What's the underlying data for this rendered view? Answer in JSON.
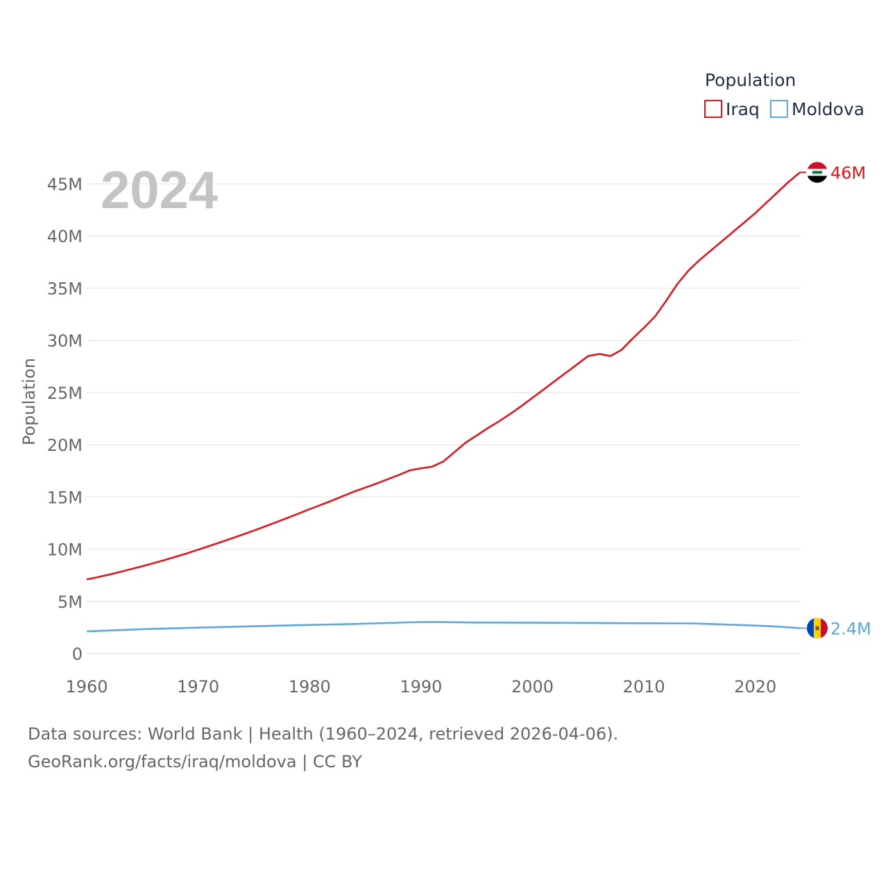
{
  "chart_data": {
    "type": "line",
    "title": "",
    "year_label": "2024",
    "ylabel": "Population",
    "xlabel": "",
    "xlim": [
      1960,
      2024
    ],
    "ylim": [
      0,
      45000000
    ],
    "x_ticks": [
      1960,
      1970,
      1980,
      1990,
      2000,
      2010,
      2020
    ],
    "y_ticks": [
      0,
      5000000,
      10000000,
      15000000,
      20000000,
      25000000,
      30000000,
      35000000,
      40000000,
      45000000
    ],
    "y_tick_labels": [
      "0",
      "5M",
      "10M",
      "15M",
      "20M",
      "25M",
      "30M",
      "35M",
      "40M",
      "45M"
    ],
    "grid": true,
    "legend": {
      "title": "Population",
      "position": "top-right",
      "entries": [
        "Iraq",
        "Moldova"
      ]
    },
    "series": [
      {
        "name": "Iraq",
        "color": "#e8141c",
        "end_label": "46M",
        "flag_icon": "iraq-flag-icon",
        "x": [
          1960,
          1961,
          1962,
          1963,
          1964,
          1965,
          1966,
          1967,
          1968,
          1969,
          1970,
          1971,
          1972,
          1973,
          1974,
          1975,
          1976,
          1977,
          1978,
          1979,
          1980,
          1981,
          1982,
          1983,
          1984,
          1985,
          1986,
          1987,
          1988,
          1989,
          1990,
          1991,
          1992,
          1993,
          1994,
          1995,
          1996,
          1997,
          1998,
          1999,
          2000,
          2001,
          2002,
          2003,
          2004,
          2005,
          2006,
          2007,
          2008,
          2009,
          2010,
          2011,
          2012,
          2013,
          2014,
          2015,
          2016,
          2017,
          2018,
          2019,
          2020,
          2021,
          2022,
          2023,
          2024
        ],
        "values": [
          7100000,
          7320000,
          7560000,
          7820000,
          8090000,
          8370000,
          8660000,
          8960000,
          9280000,
          9600000,
          9950000,
          10300000,
          10660000,
          11030000,
          11400000,
          11780000,
          12170000,
          12580000,
          12990000,
          13410000,
          13830000,
          14240000,
          14650000,
          15080000,
          15520000,
          15900000,
          16280000,
          16700000,
          17100000,
          17550000,
          17750000,
          17900000,
          18400000,
          19300000,
          20200000,
          20900000,
          21600000,
          22250000,
          22950000,
          23700000,
          24500000,
          25300000,
          26100000,
          26900000,
          27700000,
          28500000,
          28700000,
          28500000,
          29100000,
          30200000,
          31200000,
          32300000,
          33800000,
          35400000,
          36700000,
          37700000,
          38600000,
          39500000,
          40400000,
          41300000,
          42200000,
          43200000,
          44200000,
          45200000,
          46100000
        ]
      },
      {
        "name": "Moldova",
        "color": "#5ca6e5",
        "end_label": "2.4M",
        "flag_icon": "moldova-flag-icon",
        "x": [
          1960,
          1965,
          1970,
          1975,
          1980,
          1985,
          1989,
          1991,
          1995,
          2000,
          2005,
          2010,
          2014,
          2016,
          2018,
          2020,
          2022,
          2024
        ],
        "values": [
          2120000,
          2330000,
          2480000,
          2610000,
          2740000,
          2860000,
          2990000,
          3020000,
          2970000,
          2950000,
          2930000,
          2900000,
          2890000,
          2830000,
          2750000,
          2680000,
          2580000,
          2430000
        ]
      }
    ]
  },
  "sources": {
    "line1": "Data sources: World Bank | Health (1960–2024, retrieved 2026-04-06).",
    "line2": "GeoRank.org/facts/iraq/moldova | CC BY"
  }
}
